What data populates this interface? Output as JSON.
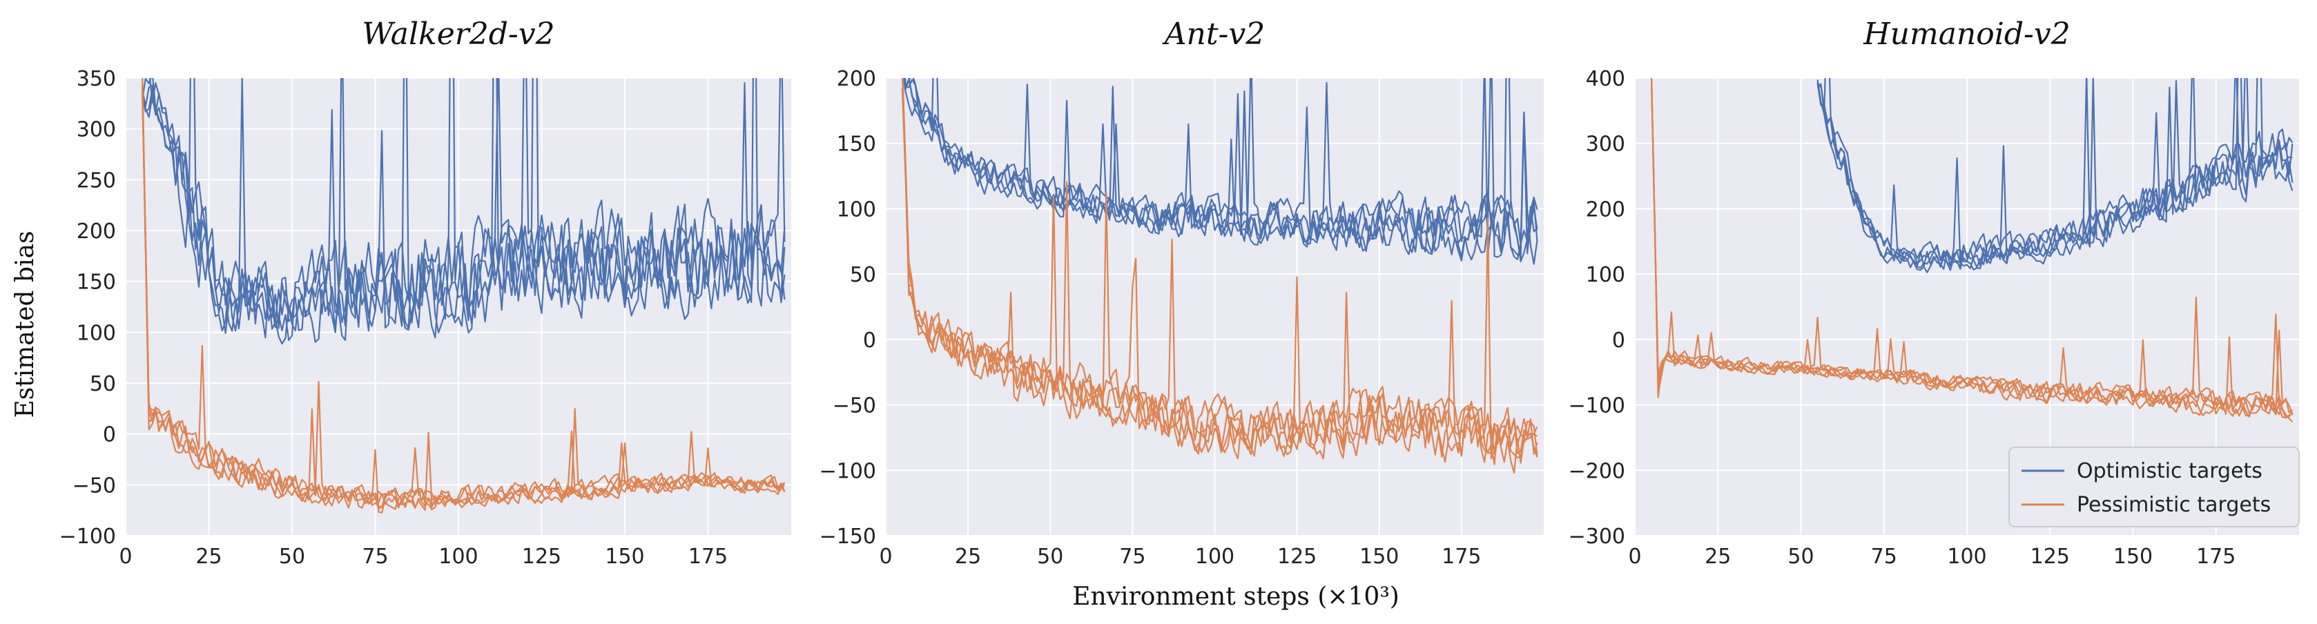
{
  "figure": {
    "xlabel": "Environment steps (×10³)",
    "ylabel": "Estimated bias",
    "legend": {
      "placement": "lower-right (third panel)",
      "entries": [
        {
          "label": "Optimistic targets",
          "color": "#4C72B0"
        },
        {
          "label": "Pessimistic targets",
          "color": "#DD8452"
        }
      ]
    },
    "colors": {
      "optimistic": "#4C72B0",
      "pessimistic": "#DD8452",
      "panel_bg": "#EAEAF2",
      "grid": "#FFFFFF"
    }
  },
  "chart_data": [
    {
      "type": "line",
      "title": "Walker2d-v2",
      "xlim": [
        0,
        200
      ],
      "ylim": [
        -100,
        350
      ],
      "xticks": [
        0,
        25,
        50,
        75,
        100,
        125,
        150,
        175
      ],
      "yticks": [
        -100,
        -50,
        0,
        50,
        100,
        150,
        200,
        250,
        300,
        350
      ],
      "grid": true,
      "series_groups": [
        {
          "name": "Optimistic targets",
          "color": "#4C72B0",
          "runs": 5,
          "x_range": [
            5,
            198
          ],
          "envelope_x": [
            5,
            10,
            20,
            30,
            50,
            75,
            100,
            125,
            150,
            175,
            198
          ],
          "envelope_mean": [
            350,
            330,
            230,
            140,
            140,
            160,
            165,
            175,
            180,
            185,
            190
          ],
          "envelope_spread": [
            30,
            40,
            80,
            50,
            60,
            70,
            75,
            75,
            75,
            75,
            75
          ]
        },
        {
          "name": "Pessimistic targets",
          "color": "#DD8452",
          "runs": 5,
          "x_range": [
            5,
            198
          ],
          "envelope_x": [
            5,
            7,
            10,
            20,
            30,
            50,
            75,
            100,
            125,
            150,
            175,
            198
          ],
          "envelope_mean": [
            350,
            20,
            15,
            -10,
            -25,
            -50,
            -65,
            -60,
            -55,
            -50,
            -45,
            -50
          ],
          "envelope_spread": [
            20,
            30,
            25,
            25,
            25,
            20,
            18,
            15,
            15,
            15,
            12,
            12
          ]
        }
      ]
    },
    {
      "type": "line",
      "title": "Ant-v2",
      "xlim": [
        0,
        200
      ],
      "ylim": [
        -150,
        200
      ],
      "xticks": [
        0,
        25,
        50,
        75,
        100,
        125,
        150,
        175
      ],
      "yticks": [
        -150,
        -100,
        -50,
        0,
        50,
        100,
        150,
        200
      ],
      "grid": true,
      "series_groups": [
        {
          "name": "Optimistic targets",
          "color": "#4C72B0",
          "runs": 5,
          "x_range": [
            5,
            198
          ],
          "envelope_x": [
            5,
            10,
            20,
            30,
            50,
            75,
            100,
            125,
            150,
            175,
            198
          ],
          "envelope_mean": [
            200,
            180,
            140,
            125,
            110,
            95,
            90,
            85,
            85,
            85,
            80
          ],
          "envelope_spread": [
            20,
            25,
            20,
            20,
            20,
            20,
            25,
            25,
            30,
            35,
            40
          ]
        },
        {
          "name": "Pessimistic targets",
          "color": "#DD8452",
          "runs": 5,
          "x_range": [
            5,
            198
          ],
          "envelope_x": [
            5,
            7,
            10,
            20,
            30,
            50,
            75,
            100,
            125,
            150,
            175,
            198
          ],
          "envelope_mean": [
            200,
            40,
            10,
            -5,
            -20,
            -35,
            -55,
            -70,
            -70,
            -65,
            -75,
            -80
          ],
          "envelope_spread": [
            20,
            30,
            25,
            25,
            25,
            30,
            30,
            30,
            30,
            35,
            35,
            35
          ]
        }
      ]
    },
    {
      "type": "line",
      "title": "Humanoid-v2",
      "xlim": [
        0,
        200
      ],
      "ylim": [
        -300,
        400
      ],
      "xticks": [
        0,
        25,
        50,
        75,
        100,
        125,
        150,
        175
      ],
      "yticks": [
        -300,
        -200,
        -100,
        0,
        100,
        200,
        300,
        400
      ],
      "grid": true,
      "series_groups": [
        {
          "name": "Optimistic targets",
          "color": "#4C72B0",
          "runs": 5,
          "x_range": [
            55,
            198
          ],
          "envelope_x": [
            55,
            60,
            65,
            70,
            75,
            85,
            100,
            125,
            150,
            175,
            198
          ],
          "envelope_mean": [
            400,
            320,
            250,
            180,
            150,
            130,
            140,
            160,
            210,
            270,
            300
          ],
          "envelope_spread": [
            30,
            40,
            40,
            30,
            30,
            30,
            35,
            40,
            50,
            60,
            70
          ]
        },
        {
          "name": "Pessimistic targets",
          "color": "#DD8452",
          "runs": 5,
          "x_range": [
            5,
            198
          ],
          "envelope_x": [
            5,
            7,
            10,
            20,
            30,
            50,
            75,
            100,
            125,
            150,
            175,
            198
          ],
          "envelope_mean": [
            400,
            -60,
            -20,
            -30,
            -35,
            -40,
            -50,
            -65,
            -75,
            -80,
            -90,
            -95
          ],
          "envelope_spread": [
            20,
            40,
            20,
            15,
            15,
            15,
            15,
            20,
            25,
            25,
            30,
            30
          ]
        }
      ]
    }
  ]
}
